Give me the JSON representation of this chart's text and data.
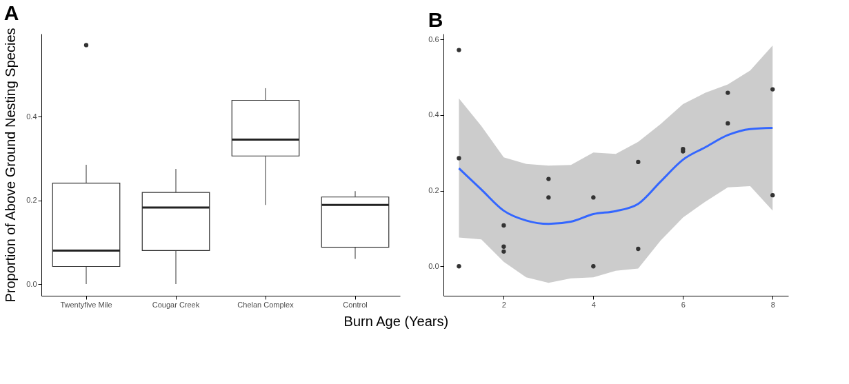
{
  "chart_data": [
    {
      "type": "box",
      "title": "A",
      "ylabel": "Proportion of Above Ground Nesting Species",
      "categories": [
        "Twentyfive Mile",
        "Cougar Creek",
        "Chelan Complex",
        "Control"
      ],
      "boxes": [
        {
          "low": 0.0,
          "q1": 0.042,
          "median": 0.08,
          "q3": 0.241,
          "high": 0.285,
          "outliers": [
            0.571
          ]
        },
        {
          "low": 0.0,
          "q1": 0.08,
          "median": 0.183,
          "q3": 0.219,
          "high": 0.275
        },
        {
          "low": 0.189,
          "q1": 0.306,
          "median": 0.345,
          "q3": 0.439,
          "high": 0.468
        },
        {
          "low": 0.06,
          "q1": 0.088,
          "median": 0.189,
          "q3": 0.208,
          "high": 0.222
        }
      ],
      "ylim": [
        -0.028,
        0.598
      ],
      "yticks": [
        {
          "value": 0,
          "label": "0.0"
        },
        {
          "value": 0.2,
          "label": "0.2"
        },
        {
          "value": 0.4,
          "label": "0.4"
        }
      ],
      "grid": false
    },
    {
      "type": "scatter",
      "title": "B",
      "xlabel": "Burn Age (Years)",
      "grid": false,
      "xlim": [
        0.655,
        8.35
      ],
      "xticks": [
        2,
        4,
        6,
        8
      ],
      "ylim": [
        -0.078,
        0.615
      ],
      "yticks": [
        {
          "value": 0,
          "label": "0.0"
        },
        {
          "value": 0.2,
          "label": "0.2"
        },
        {
          "value": 0.4,
          "label": "0.4"
        },
        {
          "value": 0.6,
          "label": "0.6"
        }
      ],
      "series": [
        {
          "type": "scatter",
          "marker": "circle",
          "color": "#333333",
          "x": [
            1,
            1,
            1,
            2,
            2,
            2,
            3,
            3,
            4,
            4,
            5,
            5,
            6,
            6,
            7,
            7,
            8,
            8
          ],
          "values": [
            0.572,
            0.286,
            0.0,
            0.108,
            0.052,
            0.039,
            0.231,
            0.182,
            0.182,
            0.0,
            0.276,
            0.046,
            0.31,
            0.304,
            0.459,
            0.378,
            0.468,
            0.188
          ]
        },
        {
          "type": "line",
          "color": "#3366ff",
          "x": [
            1,
            1.5,
            2,
            2.5,
            3,
            3.5,
            4,
            4.5,
            5,
            5.5,
            6,
            6.5,
            7,
            7.5,
            8
          ],
          "values": [
            0.259,
            0.203,
            0.147,
            0.121,
            0.112,
            0.118,
            0.138,
            0.146,
            0.165,
            0.224,
            0.282,
            0.315,
            0.347,
            0.363,
            0.366
          ],
          "upper": [
            0.444,
            0.371,
            0.288,
            0.271,
            0.266,
            0.268,
            0.301,
            0.297,
            0.329,
            0.376,
            0.429,
            0.459,
            0.481,
            0.518,
            0.584
          ],
          "lower": [
            0.076,
            0.071,
            0.012,
            -0.029,
            -0.044,
            -0.032,
            -0.029,
            -0.012,
            -0.006,
            0.068,
            0.129,
            0.171,
            0.209,
            0.212,
            0.147
          ]
        }
      ]
    }
  ]
}
